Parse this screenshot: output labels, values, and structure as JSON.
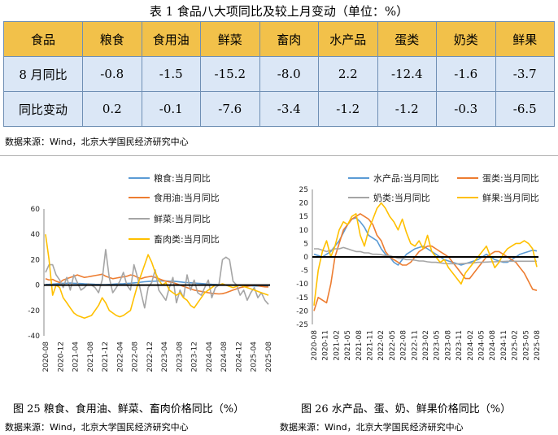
{
  "table": {
    "title": "表 1 食品八大项同比及较上月变动（单位：%）",
    "header": [
      "食品",
      "粮食",
      "食用油",
      "鲜菜",
      "畜肉",
      "水产品",
      "蛋类",
      "奶类",
      "鲜果"
    ],
    "rows": [
      {
        "label": "8 月同比",
        "values": [
          "-0.8",
          "-1.5",
          "-15.2",
          "-8.0",
          "2.2",
          "-12.4",
          "-1.6",
          "-3.7"
        ]
      },
      {
        "label": "同比变动",
        "values": [
          "0.2",
          "-0.1",
          "-7.6",
          "-3.4",
          "-1.2",
          "-1.2",
          "-0.3",
          "-6.5"
        ]
      }
    ],
    "source": "数据来源：Wind，北京大学国民经济研究中心"
  },
  "figures": {
    "left_caption": "图 25 粮食、食用油、鲜菜、畜肉价格同比（%）",
    "right_caption": "图 26 水产品、蛋、奶、鲜果价格同比（%）",
    "left_source": "数据来源：Wind，北京大学国民经济研究中心",
    "right_source": "数据来源：Wind，北京大学国民经济研究中心"
  },
  "chart_data": [
    {
      "type": "line",
      "x_tick_labels": [
        "2020-08",
        "2020-12",
        "2021-04",
        "2021-08",
        "2021-12",
        "2022-04",
        "2022-08",
        "2022-12",
        "2023-04",
        "2023-08",
        "2023-12",
        "2024-04",
        "2024-08",
        "2024-12",
        "2025-04",
        "2025-08"
      ],
      "ylim": [
        -40,
        60
      ],
      "yticks": [
        -40,
        -20,
        0,
        20,
        40,
        60
      ],
      "legend_position": "top-right",
      "series": [
        {
          "name": "粮食:当月同比",
          "color": "#5b9bd5",
          "values": [
            0.5,
            0.6,
            0.8,
            1.0,
            1.2,
            1.4,
            1.5,
            1.6,
            1.4,
            1.3,
            1.2,
            1.0,
            0.9,
            0.8,
            0.6,
            0.5,
            0.4,
            0.3,
            0.5,
            0.7,
            0.9,
            1.0,
            1.1,
            1.3,
            1.5,
            1.7,
            2.0,
            2.3,
            2.6,
            2.8,
            3.0,
            3.1,
            3.2,
            3.3,
            3.2,
            3.1,
            3.0,
            2.8,
            2.5,
            2.2,
            2.0,
            1.8,
            1.6,
            1.4,
            1.2,
            1.0,
            0.8,
            0.6,
            0.5,
            0.3,
            0.2,
            0.1,
            0.0,
            -0.1,
            -0.2,
            -0.3,
            -0.4,
            -0.5,
            -0.6,
            -0.7,
            -0.8,
            -0.9,
            -0.9,
            -0.8
          ]
        },
        {
          "name": "食用油:当月同比",
          "color": "#ed7d31",
          "values": [
            5,
            4,
            4.5,
            3,
            2,
            4,
            5,
            6,
            7,
            8,
            7,
            6,
            6.5,
            7,
            7.5,
            8,
            8.5,
            7,
            6,
            5,
            5.5,
            6,
            6.5,
            7,
            8,
            7.5,
            6,
            5,
            6,
            6.5,
            7,
            6,
            5,
            4,
            3,
            2.5,
            2,
            1,
            0,
            -1,
            -2,
            -3,
            -4,
            -4.5,
            -5,
            -5.5,
            -6,
            -6.5,
            -6.8,
            -7,
            -6.8,
            -6,
            -5,
            -4,
            -3,
            -2,
            -1.5,
            -1,
            -0.5,
            0,
            -0.5,
            -1,
            -1.4,
            -1.5
          ]
        },
        {
          "name": "鲜菜:当月同比",
          "color": "#a5a5a5",
          "values": [
            10,
            16,
            16,
            8,
            4,
            -2,
            6,
            -4,
            8,
            2,
            -4,
            -2,
            1,
            0,
            -2,
            -6,
            4,
            28,
            6,
            -6,
            -2,
            3,
            10,
            0,
            -4,
            16,
            6,
            -6,
            -18,
            -2,
            2,
            12,
            -4,
            -8,
            -12,
            -2,
            6,
            -14,
            -4,
            -10,
            8,
            -4,
            4,
            -6,
            -8,
            -2,
            4,
            -10,
            -2,
            0,
            20,
            22,
            20,
            3,
            0,
            -8,
            -4,
            -12,
            -6,
            -2,
            -10,
            -6,
            -12,
            -15.2
          ]
        },
        {
          "name": "畜肉类:当月同比",
          "color": "#ffc000",
          "values": [
            40,
            20,
            -8,
            0,
            -2,
            -10,
            -14,
            -18,
            -22,
            -24,
            -25,
            -26,
            -25,
            -24,
            -20,
            -16,
            -10,
            -14,
            -20,
            -22,
            -24,
            -25,
            -24,
            -22,
            -20,
            -10,
            0,
            8,
            16,
            24,
            18,
            10,
            4,
            0,
            2,
            -4,
            -6,
            -8,
            -6,
            -10,
            -12,
            -16,
            -18,
            -14,
            -10,
            -6,
            -4,
            -2,
            0,
            0,
            1,
            0,
            -1,
            -2,
            -1,
            0,
            -1,
            -2,
            -3,
            -4,
            -5,
            -6,
            -7,
            -8.0
          ]
        }
      ]
    },
    {
      "type": "line",
      "x_tick_labels": [
        "2020-08",
        "2020-11",
        "2021-02",
        "2021-05",
        "2021-08",
        "2021-11",
        "2022-02",
        "2022-05",
        "2022-08",
        "2022-11",
        "2023-02",
        "2023-05",
        "2023-08",
        "2023-11",
        "2024-02",
        "2024-05",
        "2024-08",
        "2024-11",
        "2025-02",
        "2025-05",
        "2025-08"
      ],
      "ylim": [
        -25,
        25
      ],
      "yticks": [
        -25,
        -20,
        -15,
        -10,
        -5,
        0,
        5,
        10,
        15,
        20,
        25
      ],
      "legend_position": "top",
      "series": [
        {
          "name": "水产品:当月同比",
          "color": "#5b9bd5",
          "values": [
            1,
            0.5,
            0,
            1,
            2,
            4,
            6,
            9,
            12,
            14,
            14.5,
            13,
            11,
            8,
            7,
            6,
            3,
            1,
            0,
            -2,
            -3,
            -1,
            1,
            2,
            3,
            3.5,
            4,
            3,
            2,
            1,
            0,
            -1,
            -1.5,
            -2,
            -2.5,
            -3,
            -2.5,
            -2,
            -1.5,
            -1,
            0,
            1,
            0,
            -1,
            -1.5,
            -2,
            -2,
            -1,
            0,
            1,
            1.5,
            2,
            2.5,
            2.2
          ]
        },
        {
          "name": "蛋类:当月同比",
          "color": "#ed7d31",
          "values": [
            -20,
            -15,
            -16,
            -17,
            -10,
            0,
            5,
            10,
            12,
            14,
            15,
            16,
            15,
            14,
            12,
            8,
            6,
            2,
            0,
            -1,
            -2,
            -3,
            -3,
            -2,
            0,
            2,
            3,
            4,
            4,
            3,
            2,
            1,
            0,
            -2,
            -4,
            -6,
            -8,
            -8,
            -6,
            -4,
            -2,
            0,
            1,
            2,
            2,
            1,
            0,
            -1,
            -2,
            -4,
            -6,
            -9,
            -12,
            -12.4
          ]
        },
        {
          "name": "奶类:当月同比",
          "color": "#a5a5a5",
          "values": [
            3,
            3,
            2.5,
            2,
            2.5,
            3,
            3,
            3.5,
            3,
            2.5,
            2,
            2,
            1.5,
            1.5,
            1,
            1,
            0.8,
            0.5,
            0.5,
            0,
            -0.5,
            -0.5,
            -1,
            -1,
            -1.2,
            -1.5,
            -1.5,
            -1.8,
            -2,
            -2,
            -2.2,
            -2.4,
            -2.5,
            -2.5,
            -2.6,
            -2.5,
            -2.4,
            -2.3,
            -2.2,
            -2,
            -2,
            -1.9,
            -1.8,
            -1.8,
            -1.7,
            -1.7,
            -1.6,
            -1.6,
            -1.6,
            -1.6,
            -1.6,
            -1.6,
            -1.6,
            -1.6
          ]
        },
        {
          "name": "鲜果:当月同比",
          "color": "#ffc000",
          "values": [
            -18,
            -5,
            2,
            6,
            0,
            4,
            10,
            13,
            12,
            15,
            16,
            8,
            4,
            10,
            14,
            18,
            20,
            18,
            15,
            13,
            10,
            14,
            9,
            5,
            4,
            6,
            3,
            8,
            2,
            0,
            -2,
            -1,
            -4,
            -6,
            -8,
            -10,
            -6,
            -4,
            -2,
            0,
            2,
            4,
            0,
            -4,
            -2,
            1,
            3,
            4,
            5,
            5,
            6,
            5,
            3,
            -3.7
          ]
        }
      ]
    }
  ]
}
